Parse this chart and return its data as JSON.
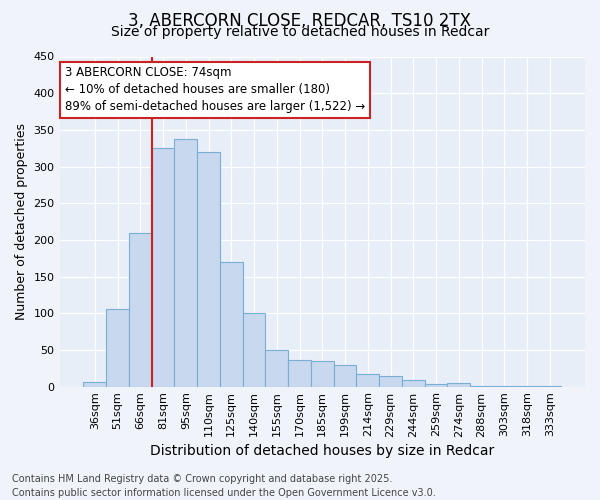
{
  "title_line1": "3, ABERCORN CLOSE, REDCAR, TS10 2TX",
  "title_line2": "Size of property relative to detached houses in Redcar",
  "xlabel": "Distribution of detached houses by size in Redcar",
  "ylabel": "Number of detached properties",
  "categories": [
    "36sqm",
    "51sqm",
    "66sqm",
    "81sqm",
    "95sqm",
    "110sqm",
    "125sqm",
    "140sqm",
    "155sqm",
    "170sqm",
    "185sqm",
    "199sqm",
    "214sqm",
    "229sqm",
    "244sqm",
    "259sqm",
    "274sqm",
    "288sqm",
    "303sqm",
    "318sqm",
    "333sqm"
  ],
  "values": [
    6,
    106,
    210,
    325,
    338,
    320,
    170,
    100,
    50,
    36,
    35,
    30,
    17,
    15,
    9,
    4,
    5,
    1,
    1,
    1,
    1
  ],
  "bar_color": "#c8d8ef",
  "bar_edge_color": "#7aafd4",
  "ylim": [
    0,
    450
  ],
  "yticks": [
    0,
    50,
    100,
    150,
    200,
    250,
    300,
    350,
    400,
    450
  ],
  "vline_color": "#cc2222",
  "annotation_line1": "3 ABERCORN CLOSE: 74sqm",
  "annotation_line2": "← 10% of detached houses are smaller (180)",
  "annotation_line3": "89% of semi-detached houses are larger (1,522) →",
  "annotation_box_color": "#ffffff",
  "annotation_box_edgecolor": "#cc2222",
  "footer_line1": "Contains HM Land Registry data © Crown copyright and database right 2025.",
  "footer_line2": "Contains public sector information licensed under the Open Government Licence v3.0.",
  "bg_color": "#f0f4fa",
  "plot_bg_color": "#e8eef8",
  "grid_color": "#ffffff",
  "title_fontsize": 12,
  "subtitle_fontsize": 10,
  "footer_fontsize": 7,
  "tick_fontsize": 8,
  "ylabel_fontsize": 9,
  "xlabel_fontsize": 10,
  "annotation_fontsize": 8.5
}
